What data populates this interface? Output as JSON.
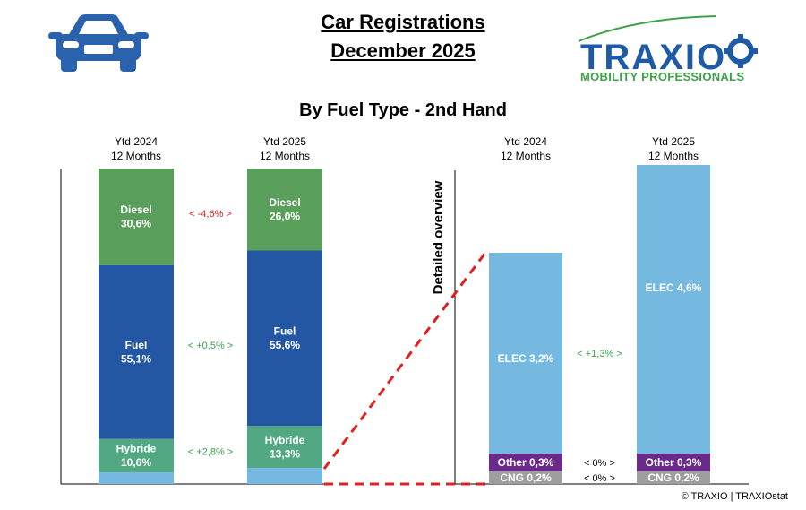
{
  "header": {
    "title_line1": "Car Registrations",
    "title_line2": "December 2025",
    "subtitle": "By Fuel Type - 2nd Hand",
    "brand_name": "TRAXIO",
    "brand_tagline": "MOBILITY PROFESSIONALS",
    "car_icon": "car-front-icon",
    "brand_color": "#1f5aa6",
    "accent_color": "#3ea14a"
  },
  "footer": {
    "copyright": "© TRAXIO | TRAXIOstat"
  },
  "chart_data": [
    {
      "type": "bar",
      "stacked": true,
      "columns": [
        {
          "label_line1": "Ytd 2024",
          "label_line2": "12 Months"
        },
        {
          "label_line1": "Ytd 2025",
          "label_line2": "12 Months"
        }
      ],
      "series": [
        {
          "name": "Other + CNG + ELEC",
          "values": [
            3.7,
            5.1
          ],
          "color": "#75b9e0",
          "labels": [
            "",
            ""
          ]
        },
        {
          "name": "Hybride",
          "values": [
            10.6,
            13.3
          ],
          "color": "#52a883",
          "labels": [
            "Hybride\n10,6%",
            "Hybride\n13,3%"
          ]
        },
        {
          "name": "Fuel",
          "values": [
            55.1,
            55.6
          ],
          "color": "#2457a3",
          "labels": [
            "Fuel\n55,1%",
            "Fuel\n55,6%"
          ]
        },
        {
          "name": "Diesel",
          "values": [
            30.6,
            26.0
          ],
          "color": "#5a9e5c",
          "labels": [
            "Diesel\n30,6%",
            "Diesel\n26,0%"
          ]
        }
      ],
      "differences": [
        {
          "series": "Diesel",
          "text": "<  -4,6%  >",
          "color": "#e02020"
        },
        {
          "series": "Fuel",
          "text": "<  +0,5%  >",
          "color": "#3ea14a"
        },
        {
          "series": "Hybride",
          "text": "<  +2,8%  >",
          "color": "#3ea14a"
        }
      ],
      "ylim": [
        0,
        100
      ]
    },
    {
      "type": "bar",
      "stacked": true,
      "title": "Detailed overview",
      "columns": [
        {
          "label_line1": "Ytd 2024",
          "label_line2": "12 Months"
        },
        {
          "label_line1": "Ytd 2025",
          "label_line2": "12 Months"
        }
      ],
      "series": [
        {
          "name": "CNG",
          "values": [
            0.2,
            0.2
          ],
          "color": "#9e9e9e",
          "labels": [
            "CNG 0,2%",
            "CNG 0,2%"
          ]
        },
        {
          "name": "Other",
          "values": [
            0.3,
            0.3
          ],
          "color": "#6a2a8a",
          "labels": [
            "Other 0,3%",
            "Other 0,3%"
          ]
        },
        {
          "name": "ELEC",
          "values": [
            3.2,
            4.6
          ],
          "color": "#75b9e0",
          "labels": [
            "ELEC 3,2%",
            "ELEC 4,6%"
          ]
        }
      ],
      "differences": [
        {
          "series": "ELEC",
          "text": "<  +1,3%  >",
          "color": "#3ea14a"
        },
        {
          "series": "Other",
          "text": "<   0%   >",
          "color": "#000000"
        },
        {
          "series": "CNG",
          "text": "<   0%   >",
          "color": "#000000"
        }
      ],
      "connector_color": "#e02020"
    }
  ]
}
